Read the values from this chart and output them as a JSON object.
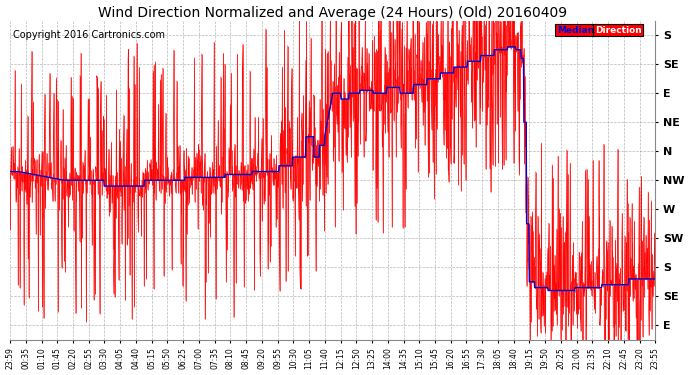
{
  "title": "Wind Direction Normalized and Average (24 Hours) (Old) 20160409",
  "copyright": "Copyright 2016 Cartronics.com",
  "bg_color": "#ffffff",
  "grid_color": "#888888",
  "red_color": "#ff0000",
  "blue_color": "#0000cc",
  "title_fontsize": 10,
  "copyright_fontsize": 7,
  "ytick_labels": [
    "S",
    "SE",
    "E",
    "NE",
    "N",
    "NW",
    "W",
    "SW",
    "S",
    "SE",
    "E"
  ],
  "ytick_values": [
    10,
    9,
    8,
    7,
    6,
    5,
    4,
    3,
    2,
    1,
    0
  ],
  "xtick_labels": [
    "23:59",
    "00:35",
    "01:10",
    "01:45",
    "02:20",
    "02:55",
    "03:30",
    "04:05",
    "04:40",
    "05:15",
    "05:50",
    "06:25",
    "07:00",
    "07:35",
    "08:10",
    "08:45",
    "09:20",
    "09:55",
    "10:30",
    "11:05",
    "11:40",
    "12:15",
    "12:50",
    "13:25",
    "14:00",
    "14:35",
    "15:10",
    "15:45",
    "16:20",
    "16:55",
    "17:30",
    "18:05",
    "18:40",
    "19:15",
    "19:50",
    "20:25",
    "21:00",
    "21:35",
    "22:10",
    "22:45",
    "23:20",
    "23:55"
  ],
  "ylim_min": -0.5,
  "ylim_max": 10.5,
  "figwidth": 6.9,
  "figheight": 3.75,
  "dpi": 100
}
